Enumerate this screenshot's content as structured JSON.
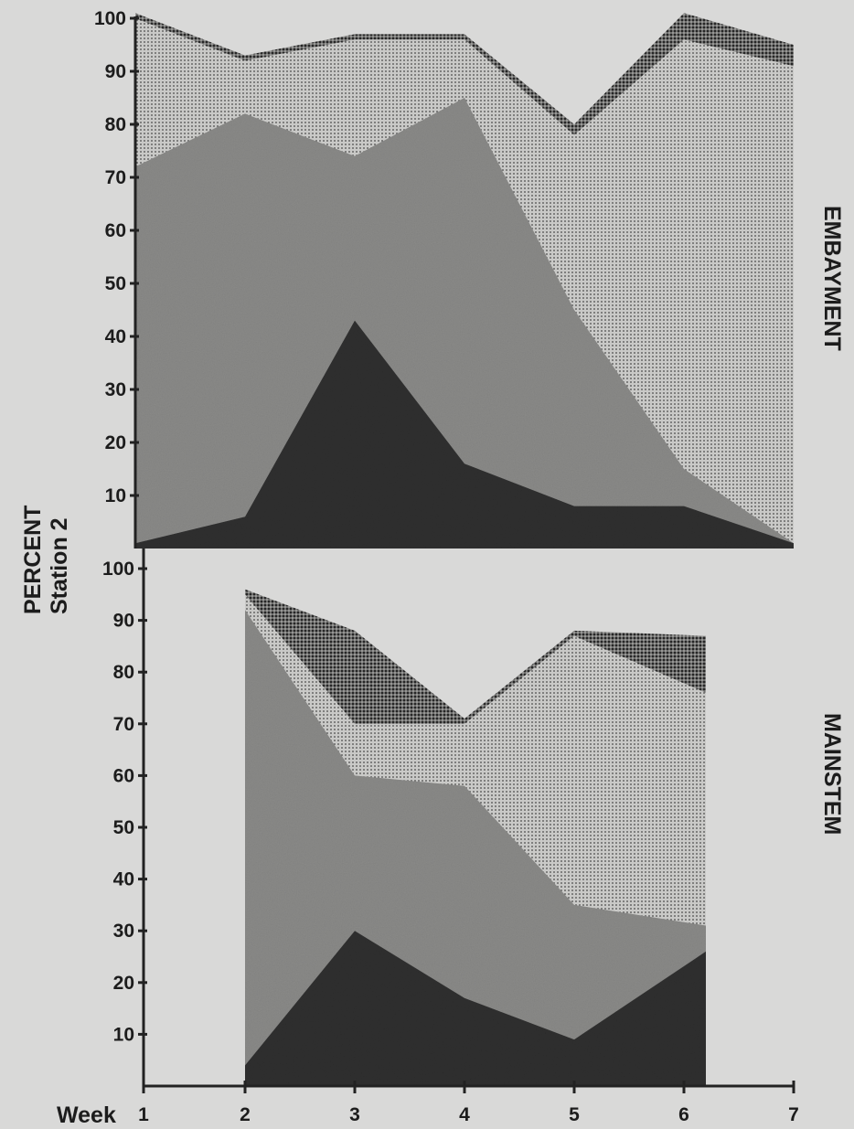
{
  "chart_data": [
    {
      "type": "area",
      "panel_label": "EMBAYMENT",
      "x_label": "Week",
      "y_label_line1": "PERCENT",
      "y_label_line2": "Station 2",
      "x_ticks": [
        "1",
        "2",
        "3",
        "4",
        "5",
        "6",
        "7"
      ],
      "y_ticks": [
        "10",
        "20",
        "30",
        "40",
        "50",
        "60",
        "70",
        "80",
        "90",
        "100"
      ],
      "ylim": [
        0,
        100
      ],
      "x": [
        1,
        2,
        3,
        4,
        5,
        6,
        7
      ],
      "stacked_boundaries": [
        {
          "layer": "bottom-dark",
          "fill": "#3a3a3a",
          "values": [
            1,
            6,
            43,
            16,
            8,
            8,
            1
          ]
        },
        {
          "layer": "medium-gray",
          "fill": "#8e8e8c",
          "values": [
            72,
            82,
            74,
            85,
            45,
            15,
            1
          ]
        },
        {
          "layer": "light-dotted",
          "fill": "#c7c7c5",
          "values": [
            100,
            92,
            96,
            96,
            78,
            96,
            91
          ]
        },
        {
          "layer": "top-dark-dotted",
          "fill": "#7a7a78",
          "values": [
            101,
            93,
            97,
            97,
            80,
            101,
            95
          ]
        }
      ]
    },
    {
      "type": "area",
      "panel_label": "MAINSTEM",
      "x_ticks": [
        "1",
        "2",
        "3",
        "4",
        "5",
        "6",
        "7"
      ],
      "y_ticks": [
        "10",
        "20",
        "30",
        "40",
        "50",
        "60",
        "70",
        "80",
        "90",
        "100"
      ],
      "ylim": [
        0,
        100
      ],
      "x": [
        2,
        3,
        4,
        5,
        6.2
      ],
      "stacked_boundaries": [
        {
          "layer": "bottom-dark",
          "fill": "#3a3a3a",
          "values": [
            4,
            30,
            17,
            9,
            26
          ]
        },
        {
          "layer": "medium-gray",
          "fill": "#8e8e8c",
          "values": [
            92,
            60,
            58,
            35,
            31
          ]
        },
        {
          "layer": "light-dotted",
          "fill": "#c7c7c5",
          "values": [
            95,
            70,
            70,
            87,
            76
          ]
        },
        {
          "layer": "top-dark-dotted",
          "fill": "#7a7a78",
          "values": [
            96,
            88,
            71,
            88,
            87
          ]
        }
      ]
    }
  ]
}
